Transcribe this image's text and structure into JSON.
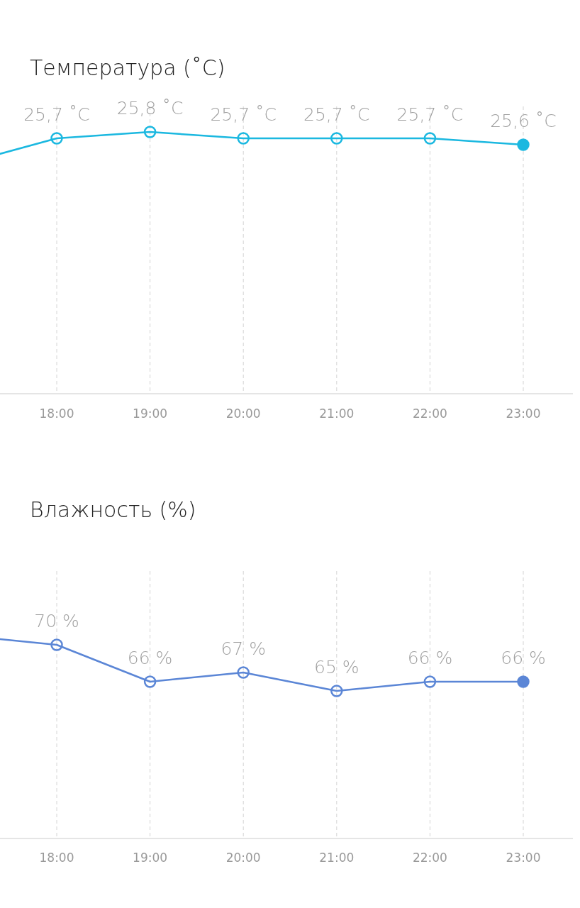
{
  "chart_data": [
    {
      "type": "line",
      "title": "Температура (˚C)",
      "categories": [
        null,
        "18:00",
        "19:00",
        "20:00",
        "21:00",
        "22:00",
        "23:00"
      ],
      "ylim": [
        21.7,
        26.2
      ],
      "marker": "circle",
      "grid": "x",
      "series": [
        {
          "color": "#1bb8e0",
          "values": [
            25.3,
            25.7,
            25.8,
            25.7,
            25.7,
            25.7,
            25.6
          ],
          "value_labels": [
            null,
            "25,7 ˚C",
            "25,8 ˚C",
            "25,7 ˚C",
            "25,7 ˚C",
            "25,7 ˚C",
            "25,6 ˚C"
          ]
        }
      ]
    },
    {
      "type": "line",
      "title": "Влажность (%)",
      "categories": [
        null,
        "18:00",
        "19:00",
        "20:00",
        "21:00",
        "22:00",
        "23:00"
      ],
      "ylim": [
        49,
        78
      ],
      "marker": "circle",
      "grid": "x",
      "series": [
        {
          "color": "#5b86d6",
          "values": [
            71,
            70,
            66,
            67,
            65,
            66,
            66
          ],
          "value_labels": [
            null,
            "70 %",
            "66 %",
            "67 %",
            "65 %",
            "66 %",
            "66 %"
          ]
        }
      ]
    }
  ]
}
